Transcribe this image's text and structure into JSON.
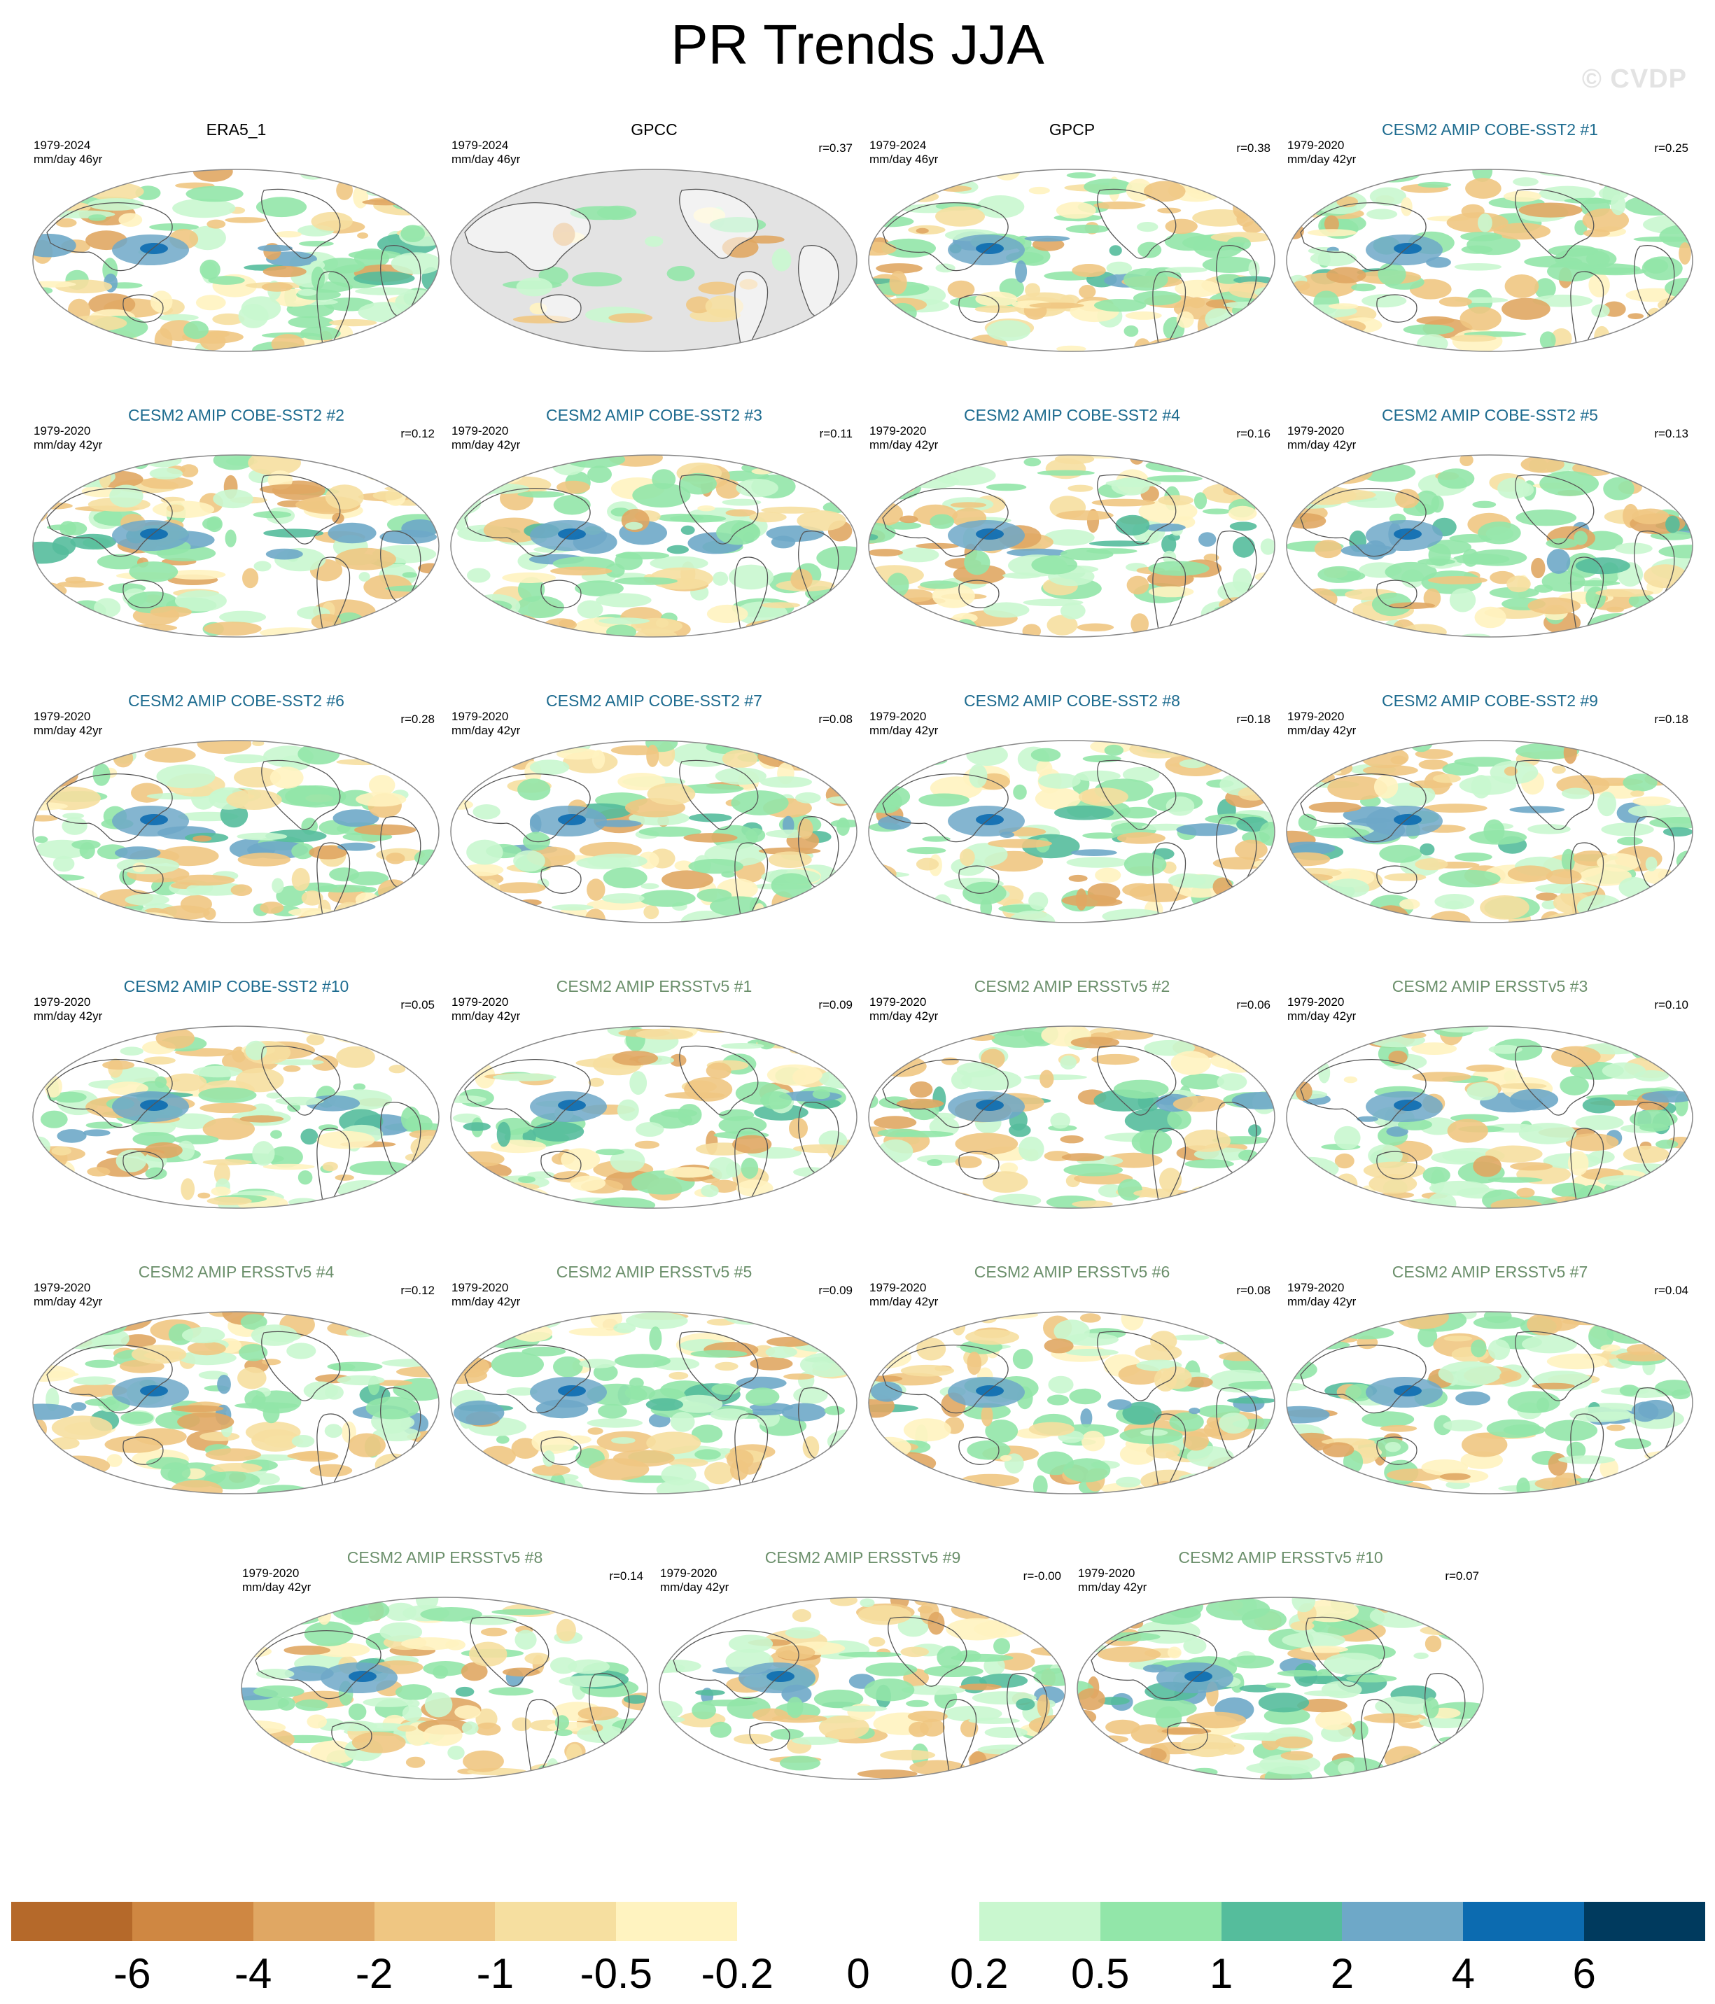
{
  "figure": {
    "title": "PR Trends JJA",
    "watermark": "© CVDP"
  },
  "panels": [
    {
      "title": "ERA5_1",
      "group": "obs",
      "period": "1979-2024",
      "units": "mm/day 46yr",
      "corr": ""
    },
    {
      "title": "GPCC",
      "group": "obs",
      "period": "1979-2024",
      "units": "mm/day 46yr",
      "corr": "r=0.37"
    },
    {
      "title": "GPCP",
      "group": "obs",
      "period": "1979-2024",
      "units": "mm/day 46yr",
      "corr": "r=0.38"
    },
    {
      "title": "CESM2 AMIP COBE-SST2 #1",
      "group": "cobe",
      "period": "1979-2020",
      "units": "mm/day 42yr",
      "corr": "r=0.25"
    },
    {
      "title": "CESM2 AMIP COBE-SST2 #2",
      "group": "cobe",
      "period": "1979-2020",
      "units": "mm/day 42yr",
      "corr": "r=0.12"
    },
    {
      "title": "CESM2 AMIP COBE-SST2 #3",
      "group": "cobe",
      "period": "1979-2020",
      "units": "mm/day 42yr",
      "corr": "r=0.11"
    },
    {
      "title": "CESM2 AMIP COBE-SST2 #4",
      "group": "cobe",
      "period": "1979-2020",
      "units": "mm/day 42yr",
      "corr": "r=0.16"
    },
    {
      "title": "CESM2 AMIP COBE-SST2 #5",
      "group": "cobe",
      "period": "1979-2020",
      "units": "mm/day 42yr",
      "corr": "r=0.13"
    },
    {
      "title": "CESM2 AMIP COBE-SST2 #6",
      "group": "cobe",
      "period": "1979-2020",
      "units": "mm/day 42yr",
      "corr": "r=0.28"
    },
    {
      "title": "CESM2 AMIP COBE-SST2 #7",
      "group": "cobe",
      "period": "1979-2020",
      "units": "mm/day 42yr",
      "corr": "r=0.08"
    },
    {
      "title": "CESM2 AMIP COBE-SST2 #8",
      "group": "cobe",
      "period": "1979-2020",
      "units": "mm/day 42yr",
      "corr": "r=0.18"
    },
    {
      "title": "CESM2 AMIP COBE-SST2 #9",
      "group": "cobe",
      "period": "1979-2020",
      "units": "mm/day 42yr",
      "corr": "r=0.18"
    },
    {
      "title": "CESM2 AMIP COBE-SST2 #10",
      "group": "cobe",
      "period": "1979-2020",
      "units": "mm/day 42yr",
      "corr": "r=0.05"
    },
    {
      "title": "CESM2 AMIP ERSSTv5 #1",
      "group": "ersst",
      "period": "1979-2020",
      "units": "mm/day 42yr",
      "corr": "r=0.09"
    },
    {
      "title": "CESM2 AMIP ERSSTv5 #2",
      "group": "ersst",
      "period": "1979-2020",
      "units": "mm/day 42yr",
      "corr": "r=0.06"
    },
    {
      "title": "CESM2 AMIP ERSSTv5 #3",
      "group": "ersst",
      "period": "1979-2020",
      "units": "mm/day 42yr",
      "corr": "r=0.10"
    },
    {
      "title": "CESM2 AMIP ERSSTv5 #4",
      "group": "ersst",
      "period": "1979-2020",
      "units": "mm/day 42yr",
      "corr": "r=0.12"
    },
    {
      "title": "CESM2 AMIP ERSSTv5 #5",
      "group": "ersst",
      "period": "1979-2020",
      "units": "mm/day 42yr",
      "corr": "r=0.09"
    },
    {
      "title": "CESM2 AMIP ERSSTv5 #6",
      "group": "ersst",
      "period": "1979-2020",
      "units": "mm/day 42yr",
      "corr": "r=0.08"
    },
    {
      "title": "CESM2 AMIP ERSSTv5 #7",
      "group": "ersst",
      "period": "1979-2020",
      "units": "mm/day 42yr",
      "corr": "r=0.04"
    },
    {
      "title": "CESM2 AMIP ERSSTv5 #8",
      "group": "ersst",
      "period": "1979-2020",
      "units": "mm/day 42yr",
      "corr": "r=0.14"
    },
    {
      "title": "CESM2 AMIP ERSSTv5 #9",
      "group": "ersst",
      "period": "1979-2020",
      "units": "mm/day 42yr",
      "corr": "r=-0.00"
    },
    {
      "title": "CESM2 AMIP ERSSTv5 #10",
      "group": "ersst",
      "period": "1979-2020",
      "units": "mm/day 42yr",
      "corr": "r=0.07"
    }
  ],
  "colorbar": {
    "colors": [
      "#b5692a",
      "#cf8742",
      "#e0a763",
      "#efc682",
      "#f6dfa0",
      "#fff3c0",
      "#ffffff",
      "#ffffff",
      "#c9f7cf",
      "#92e6a9",
      "#55bd9c",
      "#6ea8c8",
      "#0c6bb0",
      "#003a5e"
    ],
    "labels": [
      "-6",
      "-4",
      "-2",
      "-1",
      "-0.5",
      "-0.2",
      "0",
      "0.2",
      "0.5",
      "1",
      "2",
      "4",
      "6"
    ]
  },
  "style": {
    "land_mask_color": "#e3e3e3",
    "coast_color": "#555555",
    "outline_color": "#888888"
  }
}
